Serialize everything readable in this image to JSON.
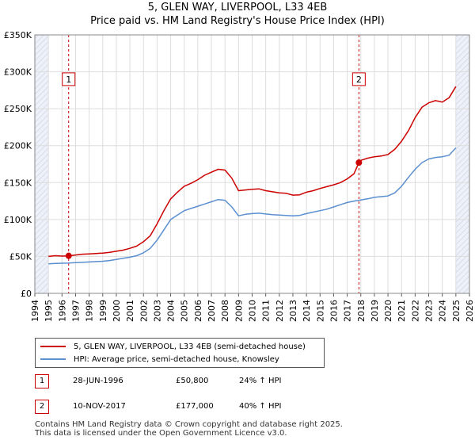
{
  "title_line1": "5, GLEN WAY, LIVERPOOL, L33 4EB",
  "title_line2": "Price paid vs. HM Land Registry's House Price Index (HPI)",
  "colors": {
    "property": "#cc0000",
    "hpi": "#5b8fd0",
    "grid": "#dddddd",
    "plot_bg": "#ffffff",
    "shade": "#e8ecf8"
  },
  "chart_data": {
    "type": "line",
    "xlim": [
      1994,
      2026
    ],
    "ylim": [
      0,
      350000
    ],
    "y_ticks": [
      0,
      50000,
      100000,
      150000,
      200000,
      250000,
      300000,
      350000
    ],
    "y_tick_labels": [
      "£0",
      "£50K",
      "£100K",
      "£150K",
      "£200K",
      "£250K",
      "£300K",
      "£350K"
    ],
    "x_ticks": [
      1994,
      1995,
      1996,
      1997,
      1998,
      1999,
      2000,
      2001,
      2002,
      2003,
      2004,
      2005,
      2006,
      2007,
      2008,
      2009,
      2010,
      2011,
      2012,
      2013,
      2014,
      2015,
      2016,
      2017,
      2018,
      2019,
      2020,
      2021,
      2022,
      2023,
      2024,
      2025,
      2026
    ],
    "x_tick_labels": [
      "1994",
      "1995",
      "1996",
      "1997",
      "1998",
      "1999",
      "2000",
      "2001",
      "2002",
      "2003",
      "2004",
      "2005",
      "2006",
      "2007",
      "2008",
      "2009",
      "2010",
      "2011",
      "2012",
      "2013",
      "2014",
      "2015",
      "2016",
      "2017",
      "2018",
      "2019",
      "2020",
      "2021",
      "2022",
      "2023",
      "2024",
      "2025",
      "2026"
    ],
    "hatched_before": 1995.0,
    "hatched_after": 2025.0,
    "series": [
      {
        "name": "5, GLEN WAY, LIVERPOOL, L33 4EB (semi-detached house)",
        "color": "#cc0000",
        "x": [
          1995.0,
          1995.5,
          1996.0,
          1996.49,
          1997.0,
          1997.5,
          1998.0,
          1998.5,
          1999.0,
          1999.5,
          2000.0,
          2000.5,
          2001.0,
          2001.5,
          2002.0,
          2002.5,
          2003.0,
          2003.5,
          2004.0,
          2004.5,
          2005.0,
          2005.5,
          2006.0,
          2006.5,
          2007.0,
          2007.5,
          2008.0,
          2008.5,
          2009.0,
          2009.5,
          2010.0,
          2010.5,
          2011.0,
          2011.5,
          2012.0,
          2012.5,
          2013.0,
          2013.5,
          2014.0,
          2014.5,
          2015.0,
          2015.5,
          2016.0,
          2016.5,
          2017.0,
          2017.5,
          2017.86,
          2018.0,
          2018.5,
          2019.0,
          2019.5,
          2020.0,
          2020.5,
          2021.0,
          2021.5,
          2022.0,
          2022.5,
          2023.0,
          2023.5,
          2024.0,
          2024.5,
          2025.0
        ],
        "values": [
          50000,
          51000,
          50500,
          50800,
          52000,
          53000,
          53500,
          54000,
          54500,
          55500,
          57000,
          58500,
          61000,
          64000,
          70000,
          78000,
          94000,
          112000,
          128000,
          137000,
          145000,
          149000,
          154000,
          160000,
          164000,
          168000,
          167000,
          156000,
          139000,
          140000,
          141000,
          141500,
          139000,
          137500,
          136000,
          135500,
          133000,
          133500,
          137000,
          139000,
          142000,
          144500,
          147000,
          150000,
          155000,
          162000,
          177000,
          180000,
          183000,
          185000,
          186000,
          188000,
          195000,
          206000,
          220000,
          238000,
          252000,
          258000,
          261000,
          259000,
          265000,
          280000
        ]
      },
      {
        "name": "HPI: Average price, semi-detached house, Knowsley",
        "color": "#5b8fd0",
        "x": [
          1995.0,
          1995.5,
          1996.0,
          1996.5,
          1997.0,
          1997.5,
          1998.0,
          1998.5,
          1999.0,
          1999.5,
          2000.0,
          2000.5,
          2001.0,
          2001.5,
          2002.0,
          2002.5,
          2003.0,
          2003.5,
          2004.0,
          2004.5,
          2005.0,
          2005.5,
          2006.0,
          2006.5,
          2007.0,
          2007.5,
          2008.0,
          2008.5,
          2009.0,
          2009.5,
          2010.0,
          2010.5,
          2011.0,
          2011.5,
          2012.0,
          2012.5,
          2013.0,
          2013.5,
          2014.0,
          2014.5,
          2015.0,
          2015.5,
          2016.0,
          2016.5,
          2017.0,
          2017.5,
          2018.0,
          2018.5,
          2019.0,
          2019.5,
          2020.0,
          2020.5,
          2021.0,
          2021.5,
          2022.0,
          2022.5,
          2023.0,
          2023.5,
          2024.0,
          2024.5,
          2025.0
        ],
        "values": [
          40000,
          40500,
          40800,
          41000,
          41500,
          42000,
          42500,
          43000,
          43500,
          44500,
          46000,
          47500,
          49000,
          51000,
          55000,
          61000,
          72000,
          86000,
          100000,
          106000,
          112000,
          115000,
          118000,
          121000,
          124000,
          127000,
          126000,
          117000,
          105000,
          107000,
          108000,
          108500,
          107500,
          106500,
          106000,
          105500,
          105000,
          105500,
          108000,
          110000,
          112000,
          114000,
          117000,
          120000,
          123000,
          125000,
          126500,
          128000,
          130000,
          131000,
          132000,
          136000,
          145000,
          157000,
          168000,
          177000,
          182000,
          184000,
          185000,
          187000,
          197000
        ]
      }
    ],
    "sales": [
      {
        "label": "1",
        "x": 1996.49,
        "y": 50800
      },
      {
        "label": "2",
        "x": 2017.86,
        "y": 177000
      }
    ],
    "sale_label_y": 290000
  },
  "legend": {
    "property_label": "5, GLEN WAY, LIVERPOOL, L33 4EB (semi-detached house)",
    "hpi_label": "HPI: Average price, semi-detached house, Knowsley"
  },
  "sales_table": [
    {
      "num": "1",
      "date": "28-JUN-1996",
      "price": "£50,800",
      "hpi": "24% ↑ HPI"
    },
    {
      "num": "2",
      "date": "10-NOV-2017",
      "price": "£177,000",
      "hpi": "40% ↑ HPI"
    }
  ],
  "footer_line1": "Contains HM Land Registry data © Crown copyright and database right 2025.",
  "footer_line2": "This data is licensed under the Open Government Licence v3.0."
}
